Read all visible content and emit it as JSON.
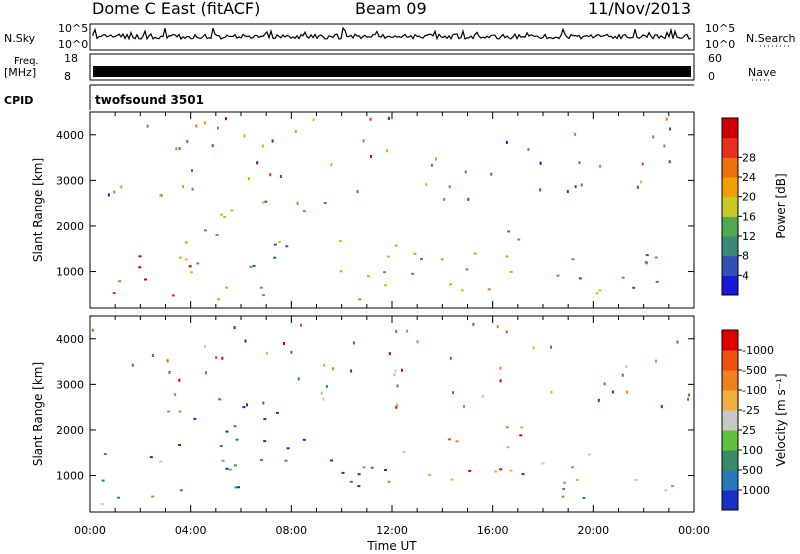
{
  "header": {
    "station": "Dome C East (fitACF)",
    "beam": "Beam 09",
    "date": "11/Nov/2013"
  },
  "top_panels": {
    "nsky_label": "N.Sky",
    "nsky_ticks": [
      "10^5",
      "10^0"
    ],
    "nsearch_label": "N.Search",
    "freq_label_1": "Freq.",
    "freq_label_2": "[MHz]",
    "freq_ticks": [
      "18",
      "8"
    ],
    "nave_label": "Nave",
    "nave_ticks": [
      "60",
      "0"
    ],
    "cpid_label": "CPID",
    "cpid_value": "twofsound 3501"
  },
  "chart_data": [
    {
      "type": "heatmap",
      "panel": "power",
      "ylabel": "Slant Range [km]",
      "ylim": [
        200,
        4500
      ],
      "yticks": [
        "1000",
        "2000",
        "3000",
        "4000"
      ],
      "xlim": [
        "00:00",
        "24:00"
      ],
      "colorbar_label": "Power [dB]",
      "colorbar_ticks": [
        "4",
        "8",
        "12",
        "16",
        "20",
        "24",
        "28"
      ],
      "colorbar_colors": [
        "#1818d8",
        "#3050b8",
        "#3a8a78",
        "#50a850",
        "#c8c820",
        "#f0a000",
        "#f07010",
        "#e83020",
        "#d00000"
      ],
      "scatter_regions": [
        {
          "t0": 0.3,
          "t1": 4.0,
          "r0": 300,
          "r1": 1500,
          "level": 0.8
        },
        {
          "t0": 1.5,
          "t1": 8.5,
          "r0": 400,
          "r1": 700,
          "level": 0.5
        },
        {
          "t0": 2.5,
          "t1": 9.5,
          "r0": 900,
          "r1": 2600,
          "level": 0.4
        },
        {
          "t0": 9.8,
          "t1": 12.5,
          "r0": 400,
          "r1": 2200,
          "level": 0.6
        },
        {
          "t0": 12.5,
          "t1": 17.5,
          "r0": 500,
          "r1": 2100,
          "level": 0.55
        },
        {
          "t0": 17.5,
          "t1": 23.8,
          "r0": 500,
          "r1": 1600,
          "level": 0.35
        }
      ]
    },
    {
      "type": "heatmap",
      "panel": "velocity",
      "ylabel": "Slant Range [km]",
      "ylim": [
        200,
        4500
      ],
      "yticks": [
        "1000",
        "2000",
        "3000",
        "4000"
      ],
      "xlim": [
        "00:00",
        "24:00"
      ],
      "xticks": [
        "00:00",
        "04:00",
        "08:00",
        "12:00",
        "16:00",
        "20:00",
        "00:00"
      ],
      "xlabel": "Time UT",
      "colorbar_label": "Velocity [m s⁻¹]",
      "colorbar_ticks": [
        "1000",
        "500",
        "100",
        "25",
        "-25",
        "-100",
        "-500",
        "-1000"
      ],
      "colorbar_colors": [
        "#1830c8",
        "#2878b8",
        "#3a8a68",
        "#60c040",
        "#c8c8c8",
        "#f0b040",
        "#f08020",
        "#f05010",
        "#e00000"
      ],
      "scatter_regions": [
        {
          "t0": 0.3,
          "t1": 4.0,
          "r0": 300,
          "r1": 1600,
          "level": 0.3
        },
        {
          "t0": 3.0,
          "t1": 10.0,
          "r0": 600,
          "r1": 2700,
          "level": 0.2
        },
        {
          "t0": 10.0,
          "t1": 12.5,
          "r0": 500,
          "r1": 2300,
          "level": 0.25
        },
        {
          "t0": 12.5,
          "t1": 17.5,
          "r0": 600,
          "r1": 2100,
          "level": 0.8
        },
        {
          "t0": 17.5,
          "t1": 23.8,
          "r0": 500,
          "r1": 1500,
          "level": 0.35
        }
      ]
    }
  ]
}
